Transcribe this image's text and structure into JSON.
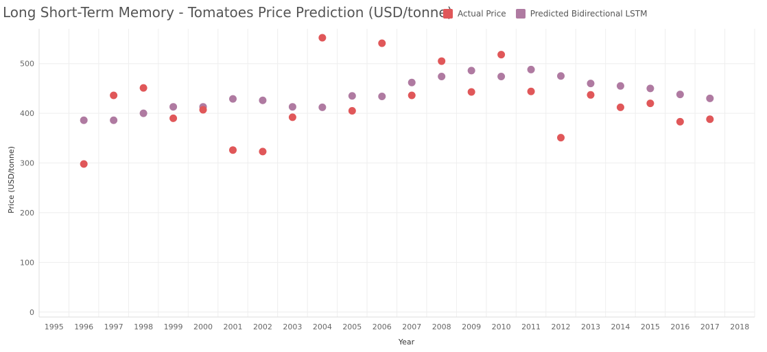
{
  "chart_data": {
    "type": "scatter",
    "title": "Long Short-Term Memory - Tomatoes Price Prediction (USD/tonne)",
    "xlabel": "Year",
    "ylabel": "Price (USD/tonne)",
    "x_ticks": [
      "1995",
      "1996",
      "1997",
      "1998",
      "1999",
      "2000",
      "2001",
      "2002",
      "2003",
      "2004",
      "2005",
      "2006",
      "2007",
      "2008",
      "2009",
      "2010",
      "2011",
      "2012",
      "2013",
      "2014",
      "2015",
      "2016",
      "2017",
      "2018"
    ],
    "y_ticks": [
      "0",
      "100",
      "200",
      "300",
      "400",
      "500"
    ],
    "xlim": [
      1994.5,
      2018.5
    ],
    "ylim": [
      -10,
      570
    ],
    "grid": true,
    "legend_position": "top-right",
    "series": [
      {
        "name": "Actual Price",
        "color": "#e05759",
        "x": [
          1996,
          1997,
          1998,
          1999,
          2000,
          2001,
          2002,
          2003,
          2004,
          2005,
          2006,
          2007,
          2008,
          2009,
          2010,
          2011,
          2012,
          2013,
          2014,
          2015,
          2016,
          2017
        ],
        "y": [
          298,
          436,
          451,
          390,
          407,
          326,
          323,
          392,
          552,
          405,
          541,
          436,
          505,
          443,
          518,
          444,
          351,
          437,
          412,
          420,
          383,
          388
        ]
      },
      {
        "name": "Predicted Bidirectional LSTM",
        "color": "#af7aa1",
        "x": [
          1996,
          1997,
          1998,
          1999,
          2000,
          2001,
          2002,
          2003,
          2004,
          2005,
          2006,
          2007,
          2008,
          2009,
          2010,
          2011,
          2012,
          2013,
          2014,
          2015,
          2016,
          2017
        ],
        "y": [
          386,
          386,
          400,
          413,
          413,
          429,
          426,
          413,
          412,
          435,
          434,
          462,
          474,
          486,
          474,
          488,
          475,
          460,
          455,
          450,
          438,
          430
        ]
      }
    ]
  }
}
